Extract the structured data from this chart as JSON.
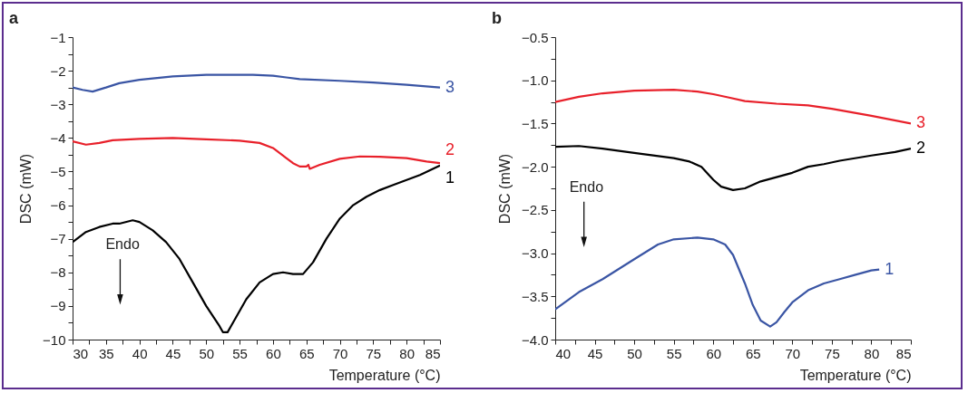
{
  "chart_data": [
    {
      "type": "line",
      "title": "a",
      "xlabel": "Temperature (°C)",
      "ylabel": "DSC (mW)",
      "annotations": [
        "Endo"
      ],
      "grid": false,
      "legend": false,
      "xlim": [
        30,
        85
      ],
      "ylim": [
        -10,
        -1
      ],
      "xticks": [
        30,
        {
          "value": 32.5,
          "label": null
        },
        35,
        {
          "value": 37.5,
          "label": null
        },
        40,
        {
          "value": 42.5,
          "label": null
        },
        45,
        {
          "value": 47.5,
          "label": null
        },
        50,
        {
          "value": 52.5,
          "label": null
        },
        55,
        {
          "value": 57.5,
          "label": null
        },
        60,
        {
          "value": 62.5,
          "label": null
        },
        65,
        {
          "value": 67.5,
          "label": null
        },
        70,
        {
          "value": 72.5,
          "label": null
        },
        75,
        {
          "value": 77.5,
          "label": null
        },
        80,
        {
          "value": 82.5,
          "label": null
        },
        85
      ],
      "yticks": [
        {
          "value": -10,
          "label": "−10"
        },
        {
          "value": -9.5,
          "label": null
        },
        {
          "value": -9,
          "label": "−9"
        },
        {
          "value": -8.5,
          "label": null
        },
        {
          "value": -8,
          "label": "−8"
        },
        {
          "value": -7.5,
          "label": null
        },
        {
          "value": -7,
          "label": "−7"
        },
        {
          "value": -6.5,
          "label": null
        },
        {
          "value": -6,
          "label": "−6"
        },
        {
          "value": -5.5,
          "label": null
        },
        {
          "value": -5,
          "label": "−5"
        },
        {
          "value": -4.5,
          "label": null
        },
        {
          "value": -4,
          "label": "−4"
        },
        {
          "value": -3.5,
          "label": null
        },
        {
          "value": -3,
          "label": "−3"
        },
        {
          "value": -2.5,
          "label": null
        },
        {
          "value": -2,
          "label": "−2"
        },
        {
          "value": -1.5,
          "label": null
        },
        {
          "value": -1,
          "label": "−1"
        }
      ],
      "series": [
        {
          "name": "1",
          "color": "#000000",
          "x": [
            30,
            32,
            34,
            36,
            37,
            39,
            40,
            42,
            44,
            46,
            48,
            50,
            52,
            52.5,
            53.2,
            54,
            56,
            58,
            60,
            61.5,
            63,
            64.5,
            66,
            68,
            70,
            72,
            74,
            76,
            78,
            80,
            82,
            85
          ],
          "values": [
            -7.1,
            -6.8,
            -6.65,
            -6.55,
            -6.55,
            -6.45,
            -6.5,
            -6.75,
            -7.1,
            -7.6,
            -8.3,
            -9.0,
            -9.6,
            -9.78,
            -9.78,
            -9.5,
            -8.8,
            -8.3,
            -8.05,
            -8.0,
            -8.05,
            -8.05,
            -7.7,
            -7.0,
            -6.4,
            -6.0,
            -5.75,
            -5.55,
            -5.4,
            -5.25,
            -5.1,
            -4.82
          ]
        },
        {
          "name": "2",
          "color": "#e8202a",
          "x": [
            30,
            32,
            34,
            36,
            40,
            45,
            50,
            55,
            58,
            60,
            62,
            63,
            64,
            65,
            65.3,
            65.5,
            67,
            70,
            73,
            76,
            80,
            83,
            85
          ],
          "values": [
            -4.1,
            -4.2,
            -4.15,
            -4.07,
            -4.03,
            -4.0,
            -4.04,
            -4.08,
            -4.15,
            -4.3,
            -4.6,
            -4.75,
            -4.85,
            -4.85,
            -4.8,
            -4.92,
            -4.8,
            -4.62,
            -4.55,
            -4.56,
            -4.6,
            -4.7,
            -4.75
          ]
        },
        {
          "name": "3",
          "color": "#3a55a4",
          "x": [
            30,
            31.5,
            33,
            35,
            37,
            40,
            45,
            50,
            55,
            57,
            60,
            62,
            64,
            70,
            75,
            80,
            85
          ],
          "values": [
            -2.5,
            -2.57,
            -2.62,
            -2.5,
            -2.37,
            -2.27,
            -2.17,
            -2.12,
            -2.12,
            -2.12,
            -2.15,
            -2.2,
            -2.25,
            -2.3,
            -2.35,
            -2.42,
            -2.5
          ]
        }
      ]
    },
    {
      "type": "line",
      "title": "b",
      "xlabel": "Temperature (°C)",
      "ylabel": "DSC (mW)",
      "annotations": [
        "Endo"
      ],
      "grid": false,
      "legend": false,
      "xlim": [
        40,
        85
      ],
      "ylim": [
        -4,
        -0.5
      ],
      "xticks": [
        40,
        {
          "value": 42.5,
          "label": null
        },
        45,
        {
          "value": 47.5,
          "label": null
        },
        50,
        {
          "value": 52.5,
          "label": null
        },
        55,
        {
          "value": 57.5,
          "label": null
        },
        60,
        {
          "value": 62.5,
          "label": null
        },
        65,
        {
          "value": 67.5,
          "label": null
        },
        70,
        {
          "value": 72.5,
          "label": null
        },
        75,
        {
          "value": 77.5,
          "label": null
        },
        80,
        {
          "value": 82.5,
          "label": null
        },
        85
      ],
      "yticks": [
        {
          "value": -4,
          "label": "−4.0"
        },
        {
          "value": -3.75,
          "label": null
        },
        {
          "value": -3.5,
          "label": "−3.5"
        },
        {
          "value": -3.25,
          "label": null
        },
        {
          "value": -3,
          "label": "−3.0"
        },
        {
          "value": -2.75,
          "label": null
        },
        {
          "value": -2.5,
          "label": "−2.5"
        },
        {
          "value": -2.25,
          "label": null
        },
        {
          "value": -2,
          "label": "−2.0"
        },
        {
          "value": -1.75,
          "label": null
        },
        {
          "value": -1.5,
          "label": "−1.5"
        },
        {
          "value": -1.25,
          "label": null
        },
        {
          "value": -1,
          "label": "−1.0"
        },
        {
          "value": -0.75,
          "label": null
        },
        {
          "value": -0.5,
          "label": "−0.5"
        }
      ],
      "series": [
        {
          "name": "1",
          "color": "#3a55a4",
          "x": [
            40,
            43,
            46,
            50,
            53,
            55,
            58,
            60,
            61.5,
            62.5,
            64,
            65,
            66,
            67.2,
            68,
            69,
            70,
            72,
            74,
            76,
            78,
            80,
            81
          ],
          "values": [
            -3.65,
            -3.45,
            -3.3,
            -3.07,
            -2.9,
            -2.84,
            -2.82,
            -2.84,
            -2.9,
            -3.02,
            -3.35,
            -3.6,
            -3.78,
            -3.85,
            -3.8,
            -3.68,
            -3.57,
            -3.43,
            -3.35,
            -3.3,
            -3.25,
            -3.2,
            -3.19
          ]
        },
        {
          "name": "2",
          "color": "#000000",
          "x": [
            40,
            43,
            46,
            50,
            55,
            57,
            58.5,
            60,
            61,
            62.5,
            64,
            66,
            68,
            70,
            72,
            74,
            76,
            80,
            83,
            85
          ],
          "values": [
            -1.77,
            -1.76,
            -1.79,
            -1.84,
            -1.9,
            -1.94,
            -2.0,
            -2.15,
            -2.23,
            -2.27,
            -2.25,
            -2.17,
            -2.12,
            -2.07,
            -2.0,
            -1.97,
            -1.93,
            -1.87,
            -1.83,
            -1.79
          ]
        },
        {
          "name": "3",
          "color": "#e8202a",
          "x": [
            40,
            43,
            46,
            50,
            55,
            58,
            60,
            62,
            64,
            68,
            72,
            75,
            80,
            85
          ],
          "values": [
            -1.25,
            -1.19,
            -1.15,
            -1.12,
            -1.11,
            -1.13,
            -1.16,
            -1.2,
            -1.24,
            -1.27,
            -1.29,
            -1.33,
            -1.41,
            -1.5
          ]
        }
      ]
    }
  ]
}
